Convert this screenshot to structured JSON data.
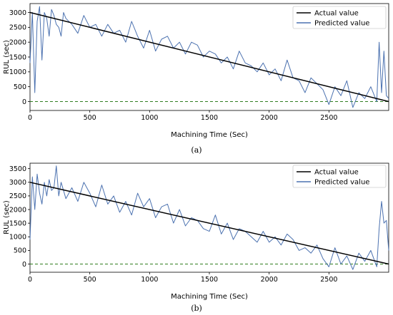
{
  "chart_data": [
    {
      "type": "line",
      "panel_label": "(a)",
      "xlabel": "Machining Time (Sec)",
      "ylabel": "RUL (sec)",
      "xlim": [
        0,
        3000
      ],
      "ylim": [
        -300,
        3300
      ],
      "xticks": [
        0,
        500,
        1000,
        1500,
        2000,
        2500
      ],
      "yticks": [
        0,
        500,
        1000,
        1500,
        2000,
        2500,
        3000
      ],
      "grid": false,
      "legend_position": "top-right",
      "reference_line": {
        "y": 0,
        "style": "dashed",
        "color": "#2f7d1f"
      },
      "series": [
        {
          "name": "Actual value",
          "color": "#000000",
          "x": [
            0,
            3000
          ],
          "y": [
            3000,
            0
          ]
        },
        {
          "name": "Predicted value",
          "color": "#4c72b0",
          "x": [
            0,
            20,
            40,
            60,
            80,
            100,
            120,
            140,
            160,
            180,
            200,
            220,
            240,
            260,
            280,
            300,
            350,
            400,
            450,
            500,
            550,
            600,
            650,
            700,
            750,
            800,
            850,
            900,
            950,
            1000,
            1050,
            1100,
            1150,
            1200,
            1250,
            1300,
            1350,
            1400,
            1450,
            1500,
            1550,
            1600,
            1650,
            1700,
            1750,
            1800,
            1850,
            1900,
            1950,
            2000,
            2050,
            2100,
            2150,
            2200,
            2250,
            2300,
            2350,
            2400,
            2450,
            2500,
            2550,
            2600,
            2650,
            2700,
            2750,
            2800,
            2850,
            2900,
            2920,
            2940,
            2960,
            2980,
            3000
          ],
          "y": [
            1300,
            3000,
            300,
            2700,
            3200,
            1400,
            3000,
            2800,
            2200,
            3100,
            2900,
            2600,
            2500,
            2200,
            3000,
            2800,
            2600,
            2300,
            2900,
            2500,
            2600,
            2200,
            2600,
            2300,
            2400,
            2000,
            2700,
            2200,
            1800,
            2400,
            1700,
            2100,
            2200,
            1800,
            2000,
            1600,
            2000,
            1900,
            1500,
            1700,
            1600,
            1300,
            1500,
            1100,
            1700,
            1300,
            1200,
            1000,
            1300,
            900,
            1100,
            700,
            1400,
            800,
            700,
            300,
            800,
            600,
            400,
            -100,
            500,
            200,
            700,
            -200,
            300,
            100,
            500,
            0,
            2000,
            300,
            1700,
            200,
            100
          ]
        }
      ]
    },
    {
      "type": "line",
      "panel_label": "(b)",
      "xlabel": "Machining Time (Sec)",
      "ylabel": "RUL (sec)",
      "xlim": [
        0,
        3000
      ],
      "ylim": [
        -300,
        3700
      ],
      "xticks": [
        0,
        500,
        1000,
        1500,
        2000,
        2500
      ],
      "yticks": [
        0,
        500,
        1000,
        1500,
        2000,
        2500,
        3000,
        3500
      ],
      "grid": false,
      "legend_position": "top-right",
      "reference_line": {
        "y": 0,
        "style": "dashed",
        "color": "#2f7d1f"
      },
      "series": [
        {
          "name": "Actual value",
          "color": "#000000",
          "x": [
            0,
            3000
          ],
          "y": [
            3000,
            0
          ]
        },
        {
          "name": "Predicted value",
          "color": "#4c72b0",
          "x": [
            0,
            20,
            40,
            60,
            80,
            100,
            120,
            140,
            160,
            180,
            200,
            220,
            240,
            260,
            280,
            300,
            350,
            400,
            450,
            500,
            550,
            600,
            650,
            700,
            750,
            800,
            850,
            900,
            950,
            1000,
            1050,
            1100,
            1150,
            1200,
            1250,
            1300,
            1350,
            1400,
            1450,
            1500,
            1550,
            1600,
            1650,
            1700,
            1750,
            1800,
            1850,
            1900,
            1950,
            2000,
            2050,
            2100,
            2150,
            2200,
            2250,
            2300,
            2350,
            2400,
            2450,
            2500,
            2550,
            2600,
            2650,
            2700,
            2750,
            2800,
            2850,
            2900,
            2920,
            2940,
            2960,
            2980,
            3000
          ],
          "y": [
            900,
            3200,
            2000,
            3300,
            2600,
            2200,
            3000,
            2500,
            3100,
            2700,
            2800,
            3600,
            2500,
            3000,
            2700,
            2400,
            2800,
            2300,
            3000,
            2600,
            2100,
            2900,
            2200,
            2500,
            1900,
            2300,
            1800,
            2600,
            2100,
            2400,
            1700,
            2100,
            2200,
            1500,
            2000,
            1400,
            1700,
            1600,
            1300,
            1200,
            1800,
            1100,
            1500,
            900,
            1300,
            1200,
            1000,
            800,
            1200,
            800,
            1000,
            700,
            1100,
            900,
            500,
            600,
            400,
            700,
            200,
            -100,
            600,
            0,
            300,
            -200,
            400,
            100,
            500,
            -100,
            1300,
            2300,
            1500,
            1600,
            500
          ]
        }
      ]
    }
  ]
}
